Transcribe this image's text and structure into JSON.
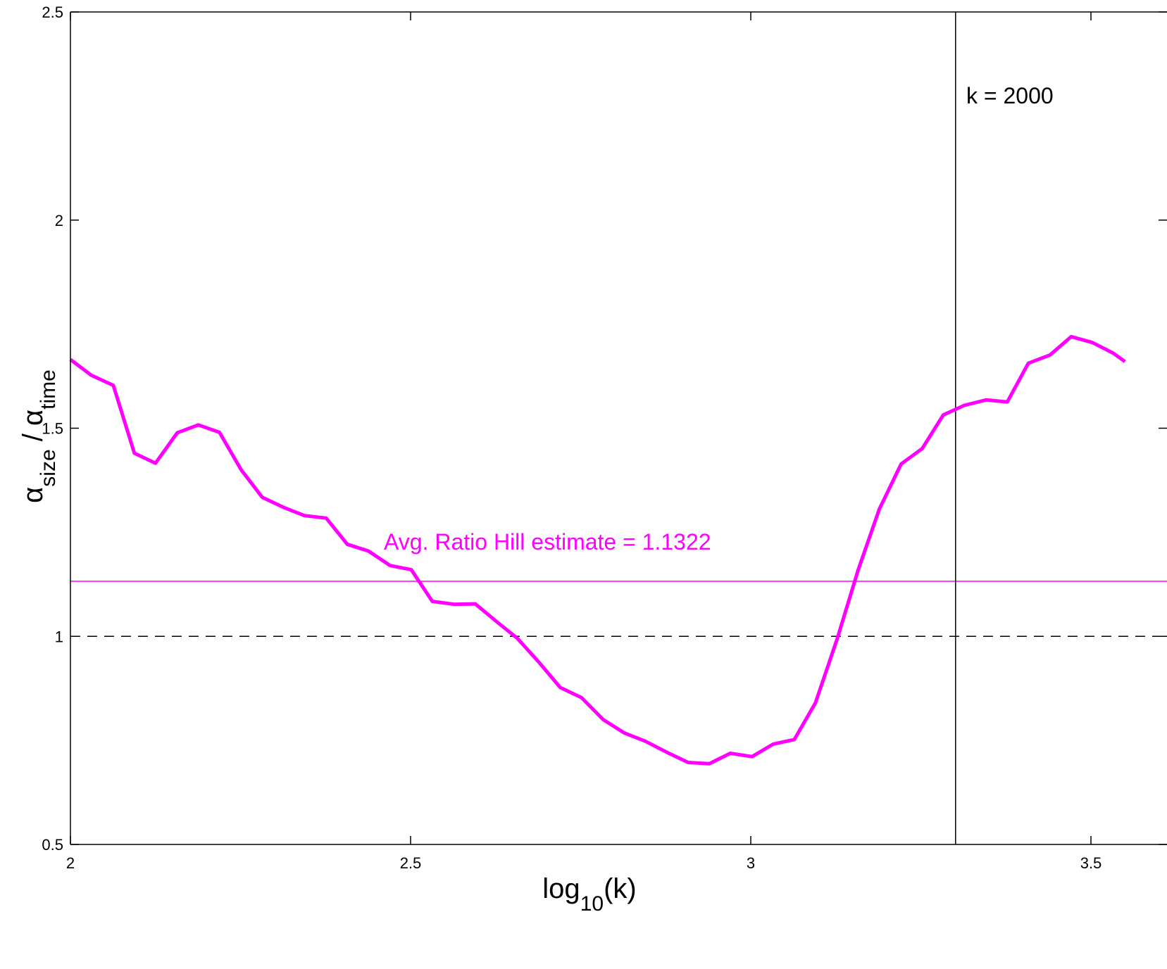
{
  "chart_data": {
    "type": "line",
    "title": "",
    "xlabel": "log",
    "xlabel_sub": "10",
    "xlabel_tail": "(k)",
    "ylabel": {
      "alpha1": "α",
      "sub1": "size",
      "sep": " / ",
      "alpha2": "α",
      "sub2": "time"
    },
    "xlim": [
      2,
      3.55
    ],
    "ylim": [
      0.5,
      2.5
    ],
    "x_ticks": [
      2,
      2.5,
      3,
      3.5
    ],
    "x_tick_labels": [
      "2",
      "2.5",
      "3",
      "3.5"
    ],
    "y_ticks": [
      0.5,
      1,
      1.5,
      2,
      2.5
    ],
    "y_tick_labels": [
      "0.5",
      "1",
      "1.5",
      "2",
      "2.5"
    ],
    "grid": false,
    "series": [
      {
        "color": "#ff00ff",
        "x": [
          2.0,
          2.031,
          2.063,
          2.094,
          2.125,
          2.157,
          2.188,
          2.219,
          2.251,
          2.282,
          2.313,
          2.344,
          2.376,
          2.407,
          2.438,
          2.47,
          2.501,
          2.532,
          2.564,
          2.595,
          2.626,
          2.657,
          2.689,
          2.72,
          2.751,
          2.783,
          2.814,
          2.845,
          2.876,
          2.908,
          2.939,
          2.97,
          3.002,
          3.033,
          3.064,
          3.095,
          3.127,
          3.158,
          3.189,
          3.221,
          3.252,
          3.283,
          3.314,
          3.346,
          3.377,
          3.408,
          3.44,
          3.471,
          3.502,
          3.533,
          3.55
        ],
        "y": [
          1.665,
          1.627,
          1.603,
          1.44,
          1.416,
          1.489,
          1.508,
          1.49,
          1.4,
          1.334,
          1.31,
          1.29,
          1.284,
          1.221,
          1.205,
          1.17,
          1.16,
          1.084,
          1.077,
          1.078,
          1.036,
          0.995,
          0.937,
          0.877,
          0.853,
          0.8,
          0.768,
          0.748,
          0.722,
          0.697,
          0.694,
          0.719,
          0.711,
          0.741,
          0.752,
          0.84,
          0.994,
          1.16,
          1.306,
          1.414,
          1.451,
          1.532,
          1.555,
          1.568,
          1.563,
          1.656,
          1.676,
          1.72,
          1.706,
          1.68,
          1.66
        ]
      }
    ],
    "hlines": [
      {
        "y": 1.1322,
        "color": "#ff00ff",
        "style": "solid"
      },
      {
        "y": 1,
        "color": "#000000",
        "style": "dashed"
      }
    ],
    "vlines": [
      {
        "x": 3.30103,
        "color": "#000000",
        "style": "solid"
      }
    ],
    "annotations": [
      {
        "id": "vline",
        "text": "k = 2000",
        "color": "#000000"
      },
      {
        "id": "hline",
        "text": "Avg. Ratio Hill estimate = 1.1322",
        "color": "#ff00ff"
      }
    ]
  }
}
